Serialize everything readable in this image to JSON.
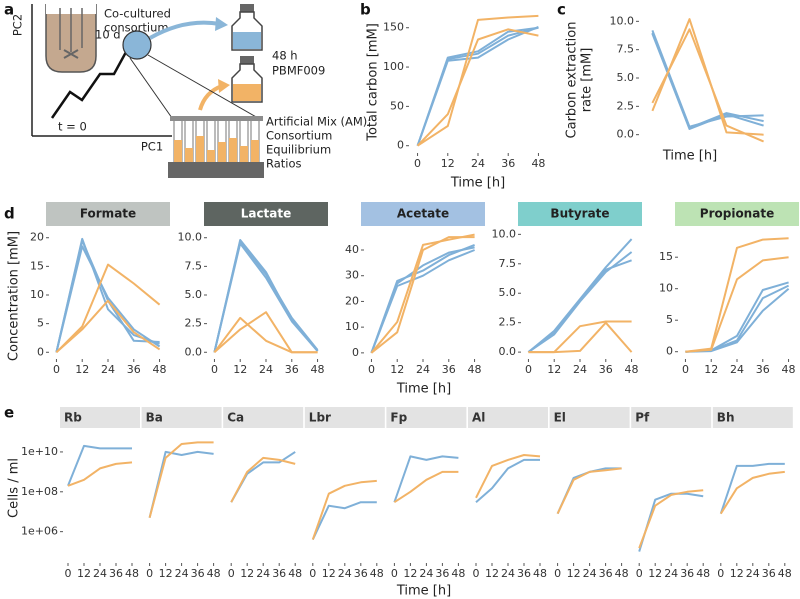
{
  "diagram": {
    "label": "a",
    "y_axis": "PC2",
    "x_axis": "PC1",
    "start": "t = 0",
    "duration": "10 d",
    "consortium": [
      "Co-cultured",
      "consortium"
    ],
    "sample": [
      "48 h",
      "PBMF009"
    ],
    "mix": [
      "Artificial Mix (AM):",
      "Consortium",
      "Equilibrium",
      "Ratios"
    ]
  },
  "chart_data": [
    {
      "type": "line",
      "label": "b",
      "ylabel": "Total carbon [mM]",
      "xlabel": "Time [h]",
      "x": [
        0,
        12,
        24,
        36,
        48
      ],
      "xlim": [
        -3,
        51
      ],
      "xticks": [
        0,
        12,
        24,
        36,
        48
      ],
      "ylim": [
        -8,
        170
      ],
      "yticks": [
        0,
        50,
        100,
        150
      ],
      "grid": false,
      "series": [
        {
          "color": "#7fb0d8",
          "values": [
            0,
            110,
            117,
            140,
            150
          ]
        },
        {
          "color": "#7fb0d8",
          "values": [
            0,
            108,
            112,
            135,
            151
          ]
        },
        {
          "color": "#7fb0d8",
          "values": [
            0,
            112,
            120,
            145,
            150
          ]
        },
        {
          "color": "#f2b366",
          "values": [
            0,
            25,
            160,
            163,
            165
          ]
        },
        {
          "color": "#f2b366",
          "values": [
            0,
            40,
            135,
            148,
            140
          ]
        }
      ]
    },
    {
      "type": "line",
      "label": "c",
      "ylabel": [
        "Carbon extraction",
        "rate [mM]"
      ],
      "xlabel": "Time [h]",
      "x": [
        6,
        18,
        30,
        42
      ],
      "xlim": [
        2,
        46
      ],
      "ylim": [
        -1,
        11
      ],
      "yticks": [
        {
          "value": 0,
          "label": "0.0"
        },
        {
          "value": 2.5,
          "label": "2.5"
        },
        {
          "value": 5,
          "label": "5.0"
        },
        {
          "value": 7.5,
          "label": "7.5"
        },
        {
          "value": 10,
          "label": "10.0"
        }
      ],
      "grid": false,
      "series": [
        {
          "color": "#7fb0d8",
          "values": [
            9.2,
            0.7,
            1.6,
            1.7
          ]
        },
        {
          "color": "#7fb0d8",
          "values": [
            8.9,
            0.5,
            1.8,
            0.8
          ]
        },
        {
          "color": "#7fb0d8",
          "values": [
            9.0,
            0.6,
            1.9,
            1.2
          ]
        },
        {
          "color": "#f2b366",
          "values": [
            2.1,
            10.2,
            0.2,
            0.0
          ]
        },
        {
          "color": "#f2b366",
          "values": [
            2.8,
            9.3,
            0.8,
            -0.6
          ]
        }
      ]
    },
    {
      "type": "line",
      "label": "d",
      "ylabel": "Concentration [mM]",
      "xlabel": "Time [h]",
      "x": [
        0,
        12,
        24,
        36,
        48
      ],
      "xlim": [
        -3,
        51
      ],
      "xticks": [
        0,
        12,
        24,
        36,
        48
      ],
      "grid": false,
      "facets": [
        {
          "title": "Formate",
          "color": "#bfc4c1",
          "ylim": [
            -1,
            21
          ],
          "yticks": [
            0,
            5,
            10,
            15,
            20
          ],
          "series": [
            {
              "color": "#7fb0d8",
              "values": [
                0,
                19.8,
                7.5,
                3,
                1.5
              ]
            },
            {
              "color": "#7fb0d8",
              "values": [
                0,
                18.5,
                9.5,
                4,
                1
              ]
            },
            {
              "color": "#7fb0d8",
              "values": [
                0,
                19.5,
                9,
                2,
                1.8
              ]
            },
            {
              "color": "#f2b366",
              "values": [
                0,
                4.5,
                15.3,
                12,
                8.3
              ]
            },
            {
              "color": "#f2b366",
              "values": [
                0,
                4,
                9,
                3.5,
                0.5
              ]
            }
          ]
        },
        {
          "title": "Lactate",
          "color": "#5e6561",
          "title_color": "#ffffff",
          "ylim": [
            -0.5,
            10.5
          ],
          "yticks": [
            {
              "value": 0,
              "label": "0.0"
            },
            {
              "value": 2.5,
              "label": "2.5"
            },
            {
              "value": 5,
              "label": "5.0"
            },
            {
              "value": 7.5,
              "label": "7.5"
            },
            {
              "value": 10,
              "label": "10.0"
            }
          ],
          "series": [
            {
              "color": "#7fb0d8",
              "values": [
                0,
                9.7,
                6.8,
                3,
                0.2
              ]
            },
            {
              "color": "#7fb0d8",
              "values": [
                0,
                9.5,
                6.5,
                2.7,
                0.1
              ]
            },
            {
              "color": "#7fb0d8",
              "values": [
                0,
                9.8,
                7,
                2.8,
                0.1
              ]
            },
            {
              "color": "#f2b366",
              "values": [
                0,
                3,
                1,
                0,
                0
              ]
            },
            {
              "color": "#f2b366",
              "values": [
                0,
                2,
                3.5,
                0,
                0
              ]
            }
          ]
        },
        {
          "title": "Acetate",
          "color": "#a3c1e2",
          "ylim": [
            -2,
            47
          ],
          "yticks": [
            0,
            10,
            20,
            30,
            40
          ],
          "series": [
            {
              "color": "#7fb0d8",
              "values": [
                0,
                28,
                32,
                38,
                42
              ]
            },
            {
              "color": "#7fb0d8",
              "values": [
                0,
                26,
                30,
                36,
                40
              ]
            },
            {
              "color": "#7fb0d8",
              "values": [
                0,
                27,
                34,
                39,
                41
              ]
            },
            {
              "color": "#f2b366",
              "values": [
                0,
                12,
                42,
                44,
                46
              ]
            },
            {
              "color": "#f2b366",
              "values": [
                0,
                8,
                40,
                45,
                45
              ]
            }
          ]
        },
        {
          "title": "Butyrate",
          "color": "#7fcfcc",
          "ylim": [
            -0.5,
            10.2
          ],
          "yticks": [
            {
              "value": 0,
              "label": "0.0"
            },
            {
              "value": 2.5,
              "label": "2.5"
            },
            {
              "value": 5,
              "label": "5.0"
            },
            {
              "value": 7.5,
              "label": "7.5"
            },
            {
              "value": 10,
              "label": "10.0"
            }
          ],
          "series": [
            {
              "color": "#7fb0d8",
              "values": [
                0,
                1.8,
                4.5,
                7.2,
                9.6
              ]
            },
            {
              "color": "#7fb0d8",
              "values": [
                0,
                1.5,
                4.3,
                6.8,
                8.5
              ]
            },
            {
              "color": "#7fb0d8",
              "values": [
                0,
                1.6,
                4.4,
                7,
                7.8
              ]
            },
            {
              "color": "#f2b366",
              "values": [
                0,
                0,
                2.2,
                2.6,
                2.6
              ]
            },
            {
              "color": "#f2b366",
              "values": [
                0,
                0,
                0.1,
                2.5,
                0
              ]
            }
          ]
        },
        {
          "title": "Propionate",
          "color": "#bde3b4",
          "ylim": [
            -1,
            19
          ],
          "yticks": [
            0,
            5,
            10,
            15
          ],
          "series": [
            {
              "color": "#7fb0d8",
              "values": [
                0,
                0.2,
                2.5,
                9.8,
                11
              ]
            },
            {
              "color": "#7fb0d8",
              "values": [
                0,
                0.2,
                1.8,
                8.5,
                10.5
              ]
            },
            {
              "color": "#7fb0d8",
              "values": [
                0,
                0.1,
                1.5,
                6.5,
                10
              ]
            },
            {
              "color": "#f2b366",
              "values": [
                0,
                0.5,
                16.5,
                17.8,
                18
              ]
            },
            {
              "color": "#f2b366",
              "values": [
                0,
                0.3,
                11.5,
                14.5,
                15
              ]
            }
          ]
        }
      ]
    },
    {
      "type": "line",
      "label": "e",
      "ylabel": "Cells / ml",
      "xlabel": "Time [h]",
      "log_scale": true,
      "x": [
        0,
        12,
        24,
        36,
        48
      ],
      "xlim": [
        -3,
        51
      ],
      "xticks": [
        0,
        12,
        24,
        36,
        48
      ],
      "grid": false,
      "ylim": [
        30000,
        100000000000.0
      ],
      "yticks": [
        {
          "value": 1000000,
          "label": "1e+06"
        },
        {
          "value": 100000000,
          "label": "1e+08"
        },
        {
          "value": 10000000000,
          "label": "1e+10"
        }
      ],
      "facets": [
        {
          "title": "Rb",
          "color": "#e3e3e3",
          "series": [
            {
              "color": "#7fb0d8",
              "values": [
                200000000.0,
                20000000000.0,
                15000000000.0,
                15000000000.0,
                15000000000.0
              ]
            },
            {
              "color": "#f2b366",
              "values": [
                200000000.0,
                400000000.0,
                1500000000.0,
                2500000000.0,
                3000000000.0
              ]
            }
          ]
        },
        {
          "title": "Ba",
          "color": "#e3e3e3",
          "series": [
            {
              "color": "#7fb0d8",
              "values": [
                5000000.0,
                10000000000.0,
                7000000000.0,
                10000000000.0,
                8000000000.0
              ]
            },
            {
              "color": "#f2b366",
              "values": [
                5000000.0,
                5000000000.0,
                25000000000.0,
                30000000000.0,
                30000000000.0
              ]
            }
          ]
        },
        {
          "title": "Ca",
          "color": "#e3e3e3",
          "series": [
            {
              "color": "#7fb0d8",
              "values": [
                30000000.0,
                800000000.0,
                3000000000.0,
                3000000000.0,
                10000000000.0
              ]
            },
            {
              "color": "#f2b366",
              "values": [
                30000000.0,
                1000000000.0,
                5000000000.0,
                4000000000.0,
                2500000000.0
              ]
            }
          ]
        },
        {
          "title": "Lbr",
          "color": "#e3e3e3",
          "series": [
            {
              "color": "#7fb0d8",
              "values": [
                400000.0,
                20000000.0,
                15000000.0,
                30000000.0,
                30000000.0
              ]
            },
            {
              "color": "#f2b366",
              "values": [
                400000.0,
                80000000.0,
                200000000.0,
                300000000.0,
                350000000.0
              ]
            }
          ]
        },
        {
          "title": "Fp",
          "color": "#e3e3e3",
          "series": [
            {
              "color": "#7fb0d8",
              "values": [
                30000000.0,
                6000000000.0,
                4000000000.0,
                6000000000.0,
                5000000000.0
              ]
            },
            {
              "color": "#f2b366",
              "values": [
                30000000.0,
                100000000.0,
                400000000.0,
                1000000000.0,
                1000000000.0
              ]
            }
          ]
        },
        {
          "title": "Al",
          "color": "#e3e3e3",
          "series": [
            {
              "color": "#7fb0d8",
              "values": [
                30000000.0,
                150000000.0,
                1500000000.0,
                4000000000.0,
                4000000000.0
              ]
            },
            {
              "color": "#f2b366",
              "values": [
                50000000.0,
                2000000000.0,
                4000000000.0,
                7000000000.0,
                6000000000.0
              ]
            }
          ]
        },
        {
          "title": "El",
          "color": "#e3e3e3",
          "series": [
            {
              "color": "#7fb0d8",
              "values": [
                8000000.0,
                500000000.0,
                1000000000.0,
                1500000000.0,
                1500000000.0
              ]
            },
            {
              "color": "#f2b366",
              "values": [
                8000000.0,
                400000000.0,
                1000000000.0,
                1200000000.0,
                1500000000.0
              ]
            }
          ]
        },
        {
          "title": "Pf",
          "color": "#e3e3e3",
          "series": [
            {
              "color": "#7fb0d8",
              "values": [
                100000.0,
                40000000.0,
                80000000.0,
                80000000.0,
                60000000.0
              ]
            },
            {
              "color": "#f2b366",
              "values": [
                150000.0,
                20000000.0,
                70000000.0,
                100000000.0,
                120000000.0
              ]
            }
          ]
        },
        {
          "title": "Bh",
          "color": "#e3e3e3",
          "series": [
            {
              "color": "#7fb0d8",
              "values": [
                8000000.0,
                2000000000.0,
                2000000000.0,
                2500000000.0,
                2500000000.0
              ]
            },
            {
              "color": "#f2b366",
              "values": [
                8000000.0,
                150000000.0,
                500000000.0,
                800000000.0,
                1000000000.0
              ]
            }
          ]
        }
      ]
    }
  ]
}
